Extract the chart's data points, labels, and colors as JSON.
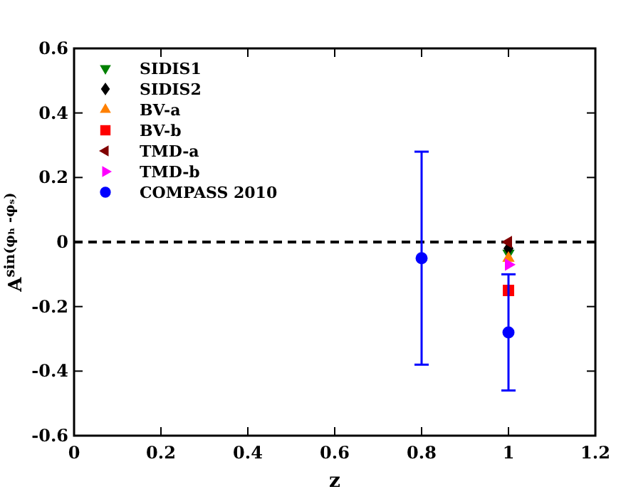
{
  "chart_data": {
    "type": "scatter",
    "xlabel": "z",
    "ylabel": "A$^{sin(φₕ -φₛ)}$",
    "x": [
      0.8,
      1
    ],
    "xlim": [
      0,
      1.2
    ],
    "xticks": [
      0,
      0.2,
      0.4,
      0.6,
      0.8,
      1,
      1.2
    ],
    "ylim": [
      -0.6,
      0.6
    ],
    "yticks": [
      -0.6,
      -0.4,
      -0.2,
      0,
      0.2,
      0.4,
      0.6
    ],
    "legend": "top left",
    "ref_lines": [
      {
        "axis": "y",
        "value": 0,
        "color": "#000000",
        "line_style": "dashed"
      }
    ],
    "series": [
      {
        "name": "SIDIS1",
        "color": "#008000",
        "marker": "triangle-down",
        "values": [
          null,
          -0.035
        ]
      },
      {
        "name": "SIDIS2",
        "color": "#000000",
        "marker": "diamond",
        "values": [
          null,
          -0.02
        ]
      },
      {
        "name": "BV-a",
        "color": "#ff8000",
        "marker": "triangle",
        "values": [
          null,
          -0.05
        ]
      },
      {
        "name": "BV-b",
        "color": "#ff0000",
        "marker": "square",
        "values": [
          null,
          -0.15
        ]
      },
      {
        "name": "TMD-a",
        "color": "#800000",
        "marker": "triangle-left",
        "values": [
          null,
          0.0
        ]
      },
      {
        "name": "TMD-b",
        "color": "#ff00ff",
        "marker": "triangle-right",
        "values": [
          null,
          -0.07
        ]
      },
      {
        "name": "COMPASS 2010",
        "color": "#0000ff",
        "marker": "circle",
        "values": [
          -0.05,
          -0.28
        ],
        "errors": [
          0.33,
          0.18
        ]
      }
    ]
  }
}
